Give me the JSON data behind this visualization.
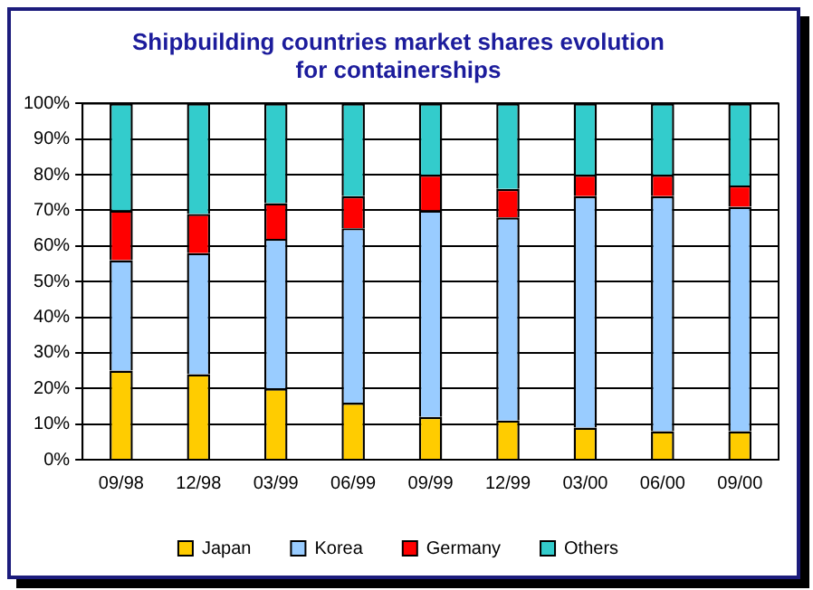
{
  "chart_data": {
    "type": "bar",
    "title": "Shipbuilding countries market shares evolution\nfor containerships",
    "stacked": true,
    "categories": [
      "09/98",
      "12/98",
      "03/99",
      "06/99",
      "09/99",
      "12/99",
      "03/00",
      "06/00",
      "09/00"
    ],
    "series": [
      {
        "name": "Japan",
        "color": "#ffcc00",
        "values": [
          25,
          24,
          20,
          16,
          12,
          11,
          9,
          8,
          8
        ]
      },
      {
        "name": "Korea",
        "color": "#99ccff",
        "values": [
          31,
          34,
          42,
          49,
          58,
          57,
          65,
          66,
          63
        ]
      },
      {
        "name": "Germany",
        "color": "#ff0000",
        "values": [
          14,
          11,
          10,
          9,
          10,
          8,
          6,
          6,
          6
        ]
      },
      {
        "name": "Others",
        "color": "#33cccc",
        "values": [
          30,
          31,
          28,
          26,
          20,
          24,
          20,
          20,
          23
        ]
      }
    ],
    "ylim": [
      0,
      100
    ],
    "yticks": [
      {
        "value": 0,
        "label": "0%"
      },
      {
        "value": 10,
        "label": "10%"
      },
      {
        "value": 20,
        "label": "20%"
      },
      {
        "value": 30,
        "label": "30%"
      },
      {
        "value": 40,
        "label": "40%"
      },
      {
        "value": 50,
        "label": "50%"
      },
      {
        "value": 60,
        "label": "60%"
      },
      {
        "value": 70,
        "label": "70%"
      },
      {
        "value": 80,
        "label": "80%"
      },
      {
        "value": 90,
        "label": "90%"
      },
      {
        "value": 100,
        "label": "100%"
      }
    ],
    "grid": "y",
    "legend": "bottom"
  }
}
